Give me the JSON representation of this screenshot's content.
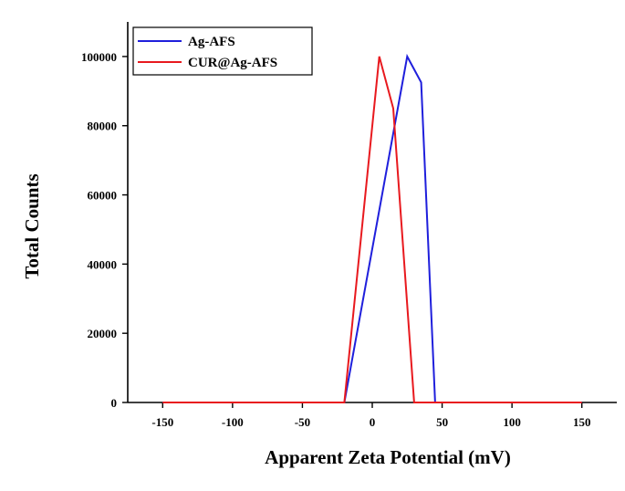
{
  "chart_data": {
    "type": "line",
    "xlabel": "Apparent Zeta Potential (mV)",
    "ylabel": "Total Counts",
    "xlim": [
      -175,
      175
    ],
    "ylim": [
      0,
      110000
    ],
    "x_ticks": [
      -150,
      -100,
      -50,
      0,
      50,
      100,
      150
    ],
    "y_ticks": [
      0,
      20000,
      40000,
      60000,
      80000,
      100000
    ],
    "grid": false,
    "legend_position": "top-left",
    "series": [
      {
        "name": "Ag-AFS",
        "color": "#1f1fdc",
        "x": [
          -150,
          -20,
          25,
          35,
          45,
          150
        ],
        "y": [
          0,
          0,
          100000,
          92500,
          0,
          0
        ]
      },
      {
        "name": "CUR@Ag-AFS",
        "color": "#e8191e",
        "x": [
          -150,
          -20,
          5,
          15,
          30,
          150
        ],
        "y": [
          0,
          0,
          100000,
          85000,
          0,
          0
        ]
      }
    ]
  }
}
